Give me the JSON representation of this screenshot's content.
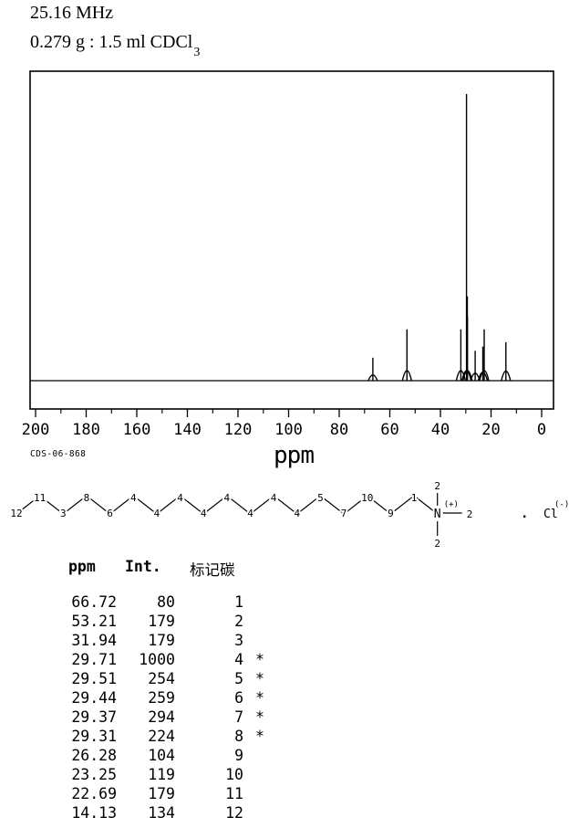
{
  "header": {
    "frequency": "25.16 MHz",
    "sample": "0.279 g : 1.5 ml CDCl",
    "sample_subscript": "3"
  },
  "footer": {
    "id_label": "CDS-06-868",
    "axis_label": "ppm"
  },
  "chart_data": {
    "type": "line",
    "xlabel": "ppm",
    "x_axis": {
      "min": 0,
      "max": 200,
      "reversed": true,
      "major_ticks": [
        200,
        180,
        160,
        140,
        120,
        100,
        80,
        60,
        40,
        20,
        0
      ],
      "minor_tick_step": 10
    },
    "y_axis": {
      "max_intensity": 1000
    },
    "peaks": [
      {
        "ppm": 66.72,
        "intensity": 80
      },
      {
        "ppm": 53.21,
        "intensity": 179
      },
      {
        "ppm": 31.94,
        "intensity": 179
      },
      {
        "ppm": 29.71,
        "intensity": 1000
      },
      {
        "ppm": 29.51,
        "intensity": 254
      },
      {
        "ppm": 29.44,
        "intensity": 259
      },
      {
        "ppm": 29.37,
        "intensity": 294
      },
      {
        "ppm": 29.31,
        "intensity": 224
      },
      {
        "ppm": 26.28,
        "intensity": 104
      },
      {
        "ppm": 23.25,
        "intensity": 119
      },
      {
        "ppm": 22.69,
        "intensity": 179
      },
      {
        "ppm": 14.13,
        "intensity": 134
      }
    ]
  },
  "molecule": {
    "chain_labels": [
      "12",
      "11",
      "3",
      "8",
      "6",
      "4",
      "4",
      "4",
      "4",
      "4",
      "4",
      "4",
      "4",
      "5",
      "7",
      "10",
      "9",
      "1"
    ],
    "nitrogen_label": "N",
    "nitrogen_charge": "(+)",
    "n_methyl_labels": [
      "2",
      "2",
      "2"
    ],
    "separator": ".",
    "counterion": "Cl",
    "counterion_charge": "(-)"
  },
  "table": {
    "headers": [
      "ppm",
      "Int.",
      "标记碳"
    ],
    "rows": [
      {
        "ppm": "66.72",
        "int": "80",
        "carbon": "1",
        "star": ""
      },
      {
        "ppm": "53.21",
        "int": "179",
        "carbon": "2",
        "star": ""
      },
      {
        "ppm": "31.94",
        "int": "179",
        "carbon": "3",
        "star": ""
      },
      {
        "ppm": "29.71",
        "int": "1000",
        "carbon": "4",
        "star": "*"
      },
      {
        "ppm": "29.51",
        "int": "254",
        "carbon": "5",
        "star": "*"
      },
      {
        "ppm": "29.44",
        "int": "259",
        "carbon": "6",
        "star": "*"
      },
      {
        "ppm": "29.37",
        "int": "294",
        "carbon": "7",
        "star": "*"
      },
      {
        "ppm": "29.31",
        "int": "224",
        "carbon": "8",
        "star": "*"
      },
      {
        "ppm": "26.28",
        "int": "104",
        "carbon": "9",
        "star": ""
      },
      {
        "ppm": "23.25",
        "int": "119",
        "carbon": "10",
        "star": ""
      },
      {
        "ppm": "22.69",
        "int": "179",
        "carbon": "11",
        "star": ""
      },
      {
        "ppm": "14.13",
        "int": "134",
        "carbon": "12",
        "star": ""
      }
    ]
  },
  "colors": {
    "ink": "#000000",
    "paper": "#ffffff"
  }
}
